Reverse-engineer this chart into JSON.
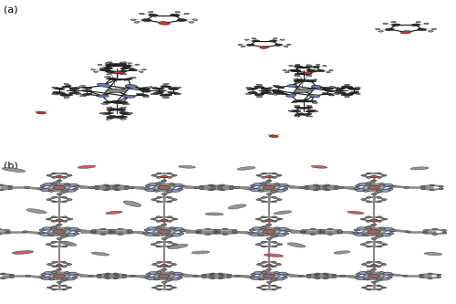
{
  "fig_width": 5.0,
  "fig_height": 3.33,
  "dpi": 100,
  "panel_a_label": "(a)",
  "panel_b_label": "(b)",
  "label_fontsize": 8,
  "bg_color": "#ffffff",
  "panel_divider": 0.485,
  "atom_colors_ortep": {
    "C": "#2a2a2a",
    "N": "#6677bb",
    "O": "#cc3333",
    "H": "#b0b0b0",
    "Zn": "#888888"
  },
  "tube_gray": "#888888",
  "tube_N": "#8899cc",
  "tube_O": "#cc4444",
  "tube_Zn": "#996666",
  "tube_C": "#777777"
}
